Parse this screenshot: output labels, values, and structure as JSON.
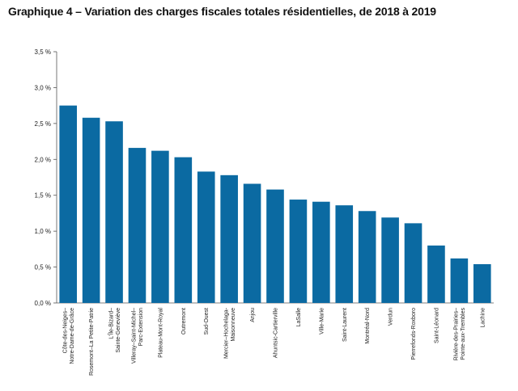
{
  "chart_data": {
    "type": "bar",
    "title": "Graphique 4 – Variation des charges fiscales totales résidentielles, de 2018 à 2019",
    "xlabel": "",
    "ylabel": "",
    "ylim": [
      0,
      3.5
    ],
    "yticks": [
      "0,0 %",
      "0,5 %",
      "1,0 %",
      "1,5 %",
      "2,0 %",
      "2,5 %",
      "3,0 %",
      "3,5 %"
    ],
    "grid": false,
    "bar_color": "#0b6aa2",
    "categories": [
      [
        "Côte-des-Neiges–",
        "Notre-Dame-de-Grâce"
      ],
      [
        "Rosemont–La Petite-Patrie"
      ],
      [
        "L'Île-Bizard–",
        "Sainte-Geneviève"
      ],
      [
        "Villeray–Saint-Michel–",
        "Parc-Extension"
      ],
      [
        "Plateau-Mont-Royal"
      ],
      [
        "Outremont"
      ],
      [
        "Sud-Ouest"
      ],
      [
        "Mercier–Hochelaga-",
        "Maisonneuve"
      ],
      [
        "Anjou"
      ],
      [
        "Ahuntsic-Cartierville"
      ],
      [
        "LaSalle"
      ],
      [
        "Ville-Marie"
      ],
      [
        "Saint-Laurent"
      ],
      [
        "Montréal-Nord"
      ],
      [
        "Verdun"
      ],
      [
        "Pierrefonds-Roxboro"
      ],
      [
        "Saint-Léonard"
      ],
      [
        "Rivière-des-Prairies–",
        "Pointe-aux-Trembles"
      ],
      [
        "Lachine"
      ]
    ],
    "values": [
      2.75,
      2.58,
      2.53,
      2.16,
      2.12,
      2.03,
      1.83,
      1.78,
      1.66,
      1.58,
      1.44,
      1.41,
      1.36,
      1.28,
      1.19,
      1.11,
      0.8,
      0.62,
      0.54
    ]
  }
}
